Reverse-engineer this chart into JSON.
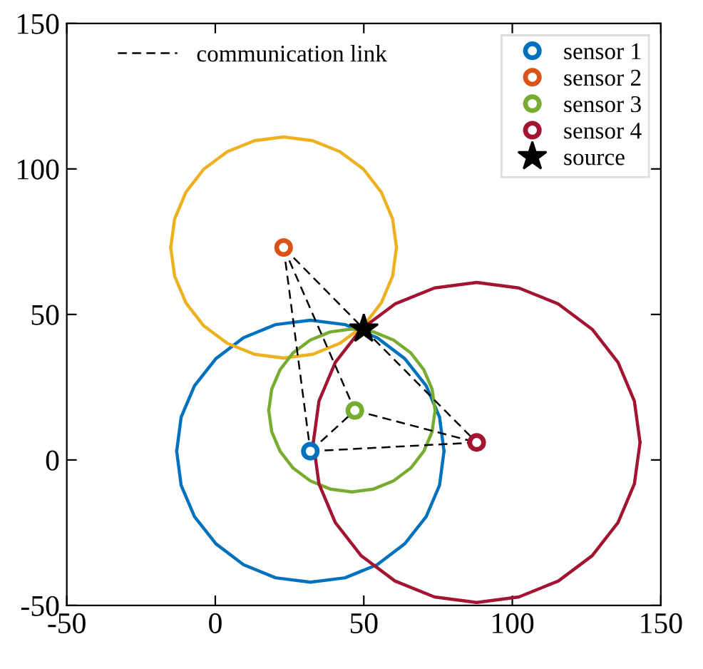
{
  "chart_data": {
    "type": "scatter",
    "xlim": [
      -50,
      150
    ],
    "ylim": [
      -50,
      150
    ],
    "xticks": [
      -50,
      0,
      50,
      100,
      150
    ],
    "yticks": [
      -50,
      0,
      50,
      100,
      150
    ],
    "grid": false,
    "legend": "top right",
    "series": [
      {
        "type": "line",
        "color": "#0072bd",
        "marker": "none",
        "x": [
          -13,
          -11.5,
          -7,
          0.2,
          9.5,
          20.3,
          32,
          43.7,
          54.5,
          63.8,
          71,
          75.5,
          77,
          null,
          -13,
          -11.5,
          -7,
          0.2,
          9.5,
          20.3,
          32,
          43.7,
          54.5,
          63.8,
          71,
          75.5,
          77
        ],
        "values": [
          3,
          14.7,
          25.5,
          34.8,
          42,
          46.5,
          48,
          46.5,
          42,
          34.8,
          25.5,
          14.7,
          3,
          null,
          3,
          -8.7,
          -19.5,
          -28.8,
          -36,
          -40.5,
          -42,
          -40.5,
          -36,
          -28.8,
          -19.5,
          -8.7,
          3
        ]
      },
      {
        "type": "line",
        "color": "#edb120",
        "marker": "none",
        "x": [
          -15,
          -13.7,
          -9.9,
          -3.9,
          4,
          13.2,
          23,
          32.8,
          42,
          49.9,
          55.9,
          59.7,
          61,
          null,
          -15,
          -13.7,
          -9.9,
          -3.9,
          4,
          13.2,
          23,
          32.8,
          42,
          49.9,
          55.9,
          59.7,
          61
        ],
        "values": [
          73,
          82.8,
          92,
          99.9,
          105.9,
          109.7,
          111,
          109.7,
          105.9,
          99.9,
          92,
          82.8,
          73,
          null,
          73,
          63.2,
          54,
          46.1,
          40.1,
          36.3,
          35,
          36.3,
          40.1,
          46.1,
          54,
          63.2,
          73
        ]
      },
      {
        "type": "line",
        "color": "#77ac30",
        "marker": "none",
        "x": [
          18,
          19,
          21.8,
          26.2,
          32,
          38.7,
          46,
          53.3,
          60,
          65.8,
          70.2,
          73,
          74,
          null,
          18,
          19,
          21.8,
          26.2,
          32,
          38.7,
          46,
          53.3,
          60,
          65.8,
          70.2,
          73,
          74
        ],
        "values": [
          17,
          24.3,
          31,
          36.8,
          41.2,
          44,
          45,
          44,
          41.2,
          36.8,
          31,
          24.3,
          17,
          null,
          17,
          9.7,
          3,
          -2.8,
          -7.2,
          -10,
          -11,
          -10,
          -7.2,
          -2.8,
          3,
          9.7,
          17
        ]
      },
      {
        "type": "line",
        "color": "#a2142f",
        "marker": "none",
        "x": [
          33,
          34.9,
          40.4,
          49.1,
          60.5,
          73.8,
          88,
          102.2,
          115.5,
          126.9,
          135.6,
          141.1,
          143,
          null,
          33,
          34.9,
          40.4,
          49.1,
          60.5,
          73.8,
          88,
          102.2,
          115.5,
          126.9,
          135.6,
          141.1,
          143
        ],
        "values": [
          6,
          20.2,
          33.5,
          44.9,
          53.6,
          59.1,
          61,
          59.1,
          53.6,
          44.9,
          33.5,
          20.2,
          6,
          null,
          6,
          -8.2,
          -21.5,
          -32.9,
          -41.6,
          -47.1,
          -49,
          -47.1,
          -41.6,
          -32.9,
          -21.5,
          -8.2,
          6
        ]
      },
      {
        "type": "line",
        "name": "communication link",
        "color": "#000000",
        "marker": "none",
        "line_style": "dashed",
        "x": [
          23,
          50,
          null,
          23,
          32,
          null,
          23,
          47,
          null,
          32,
          47,
          null,
          32,
          88,
          null,
          47,
          88,
          null,
          50,
          88
        ],
        "values": [
          73,
          45,
          null,
          73,
          3,
          null,
          73,
          17,
          null,
          3,
          17,
          null,
          3,
          6,
          null,
          17,
          6,
          null,
          45,
          6
        ]
      },
      {
        "name": "sensor 1",
        "color": "#0072bd",
        "marker": "circle",
        "x": [
          32
        ],
        "values": [
          3
        ]
      },
      {
        "name": "sensor 2",
        "color": "#d95319",
        "marker": "circle",
        "x": [
          23
        ],
        "values": [
          73
        ]
      },
      {
        "name": "sensor 3",
        "color": "#77ac30",
        "marker": "circle",
        "x": [
          47
        ],
        "values": [
          17
        ]
      },
      {
        "name": "sensor 4",
        "color": "#a2142f",
        "marker": "circle",
        "x": [
          88
        ],
        "values": [
          6
        ]
      },
      {
        "name": "source",
        "color": "#000000",
        "marker": "star",
        "x": [
          50
        ],
        "values": [
          45
        ]
      }
    ]
  }
}
